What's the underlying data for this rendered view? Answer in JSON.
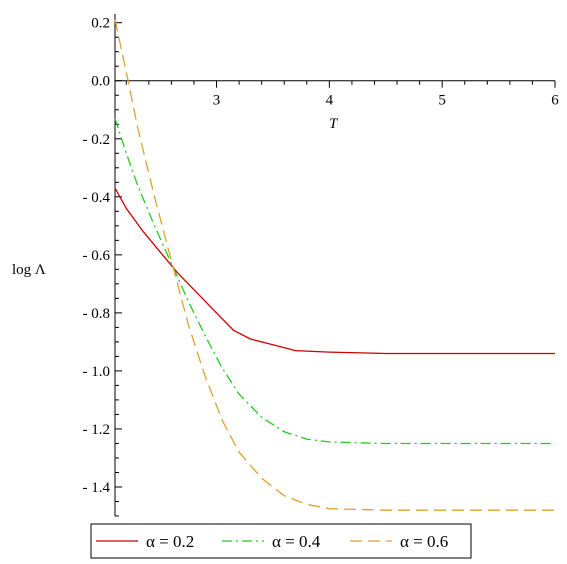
{
  "chart_data": {
    "type": "line",
    "title": "",
    "xlabel": "T",
    "ylabel": "log Λ",
    "xlim": [
      2.1,
      6.0
    ],
    "ylim": [
      -1.5,
      0.23
    ],
    "x_ticks": [
      3,
      4,
      5,
      6
    ],
    "x_tick_labels": [
      "3",
      "4",
      "5",
      "6"
    ],
    "y_ticks": [
      0.2,
      0.0,
      -0.2,
      -0.4,
      -0.6,
      -0.8,
      -1.0,
      -1.2,
      -1.4
    ],
    "y_tick_labels": [
      "0.2",
      "0.0",
      "- 0.2",
      "- 0.4",
      "- 0.6",
      "- 0.8",
      "- 1.0",
      "- 1.2",
      "- 1.4"
    ],
    "grid": false,
    "legend_position": "bottom",
    "series": [
      {
        "name": "α = 0.2",
        "color": "#cc0000",
        "dash": "solid",
        "points": [
          [
            2.1,
            -0.37
          ],
          [
            2.2,
            -0.44
          ],
          [
            2.35,
            -0.52
          ],
          [
            2.5,
            -0.59
          ],
          [
            2.65,
            -0.66
          ],
          [
            2.8,
            -0.72
          ],
          [
            3.0,
            -0.8
          ],
          [
            3.15,
            -0.86
          ],
          [
            3.3,
            -0.89
          ],
          [
            3.5,
            -0.91
          ],
          [
            3.7,
            -0.93
          ],
          [
            4.0,
            -0.935
          ],
          [
            4.5,
            -0.94
          ],
          [
            5.0,
            -0.94
          ],
          [
            6.0,
            -0.94
          ]
        ]
      },
      {
        "name": "α = 0.4",
        "color": "#22cc22",
        "dash": "dashdot",
        "points": [
          [
            2.1,
            -0.13
          ],
          [
            2.2,
            -0.25
          ],
          [
            2.3,
            -0.36
          ],
          [
            2.45,
            -0.5
          ],
          [
            2.6,
            -0.63
          ],
          [
            2.75,
            -0.76
          ],
          [
            2.9,
            -0.88
          ],
          [
            3.05,
            -0.99
          ],
          [
            3.2,
            -1.08
          ],
          [
            3.4,
            -1.16
          ],
          [
            3.6,
            -1.21
          ],
          [
            3.8,
            -1.235
          ],
          [
            4.0,
            -1.245
          ],
          [
            4.5,
            -1.25
          ],
          [
            5.0,
            -1.25
          ],
          [
            6.0,
            -1.25
          ]
        ]
      },
      {
        "name": "α = 0.6",
        "color": "#e0a030",
        "dash": "dashed",
        "points": [
          [
            2.1,
            0.21
          ],
          [
            2.2,
            0.03
          ],
          [
            2.3,
            -0.16
          ],
          [
            2.45,
            -0.4
          ],
          [
            2.6,
            -0.62
          ],
          [
            2.75,
            -0.84
          ],
          [
            2.9,
            -1.02
          ],
          [
            3.05,
            -1.17
          ],
          [
            3.2,
            -1.28
          ],
          [
            3.4,
            -1.37
          ],
          [
            3.6,
            -1.43
          ],
          [
            3.8,
            -1.46
          ],
          [
            4.0,
            -1.475
          ],
          [
            4.5,
            -1.48
          ],
          [
            5.0,
            -1.48
          ],
          [
            6.0,
            -1.48
          ]
        ]
      }
    ]
  }
}
